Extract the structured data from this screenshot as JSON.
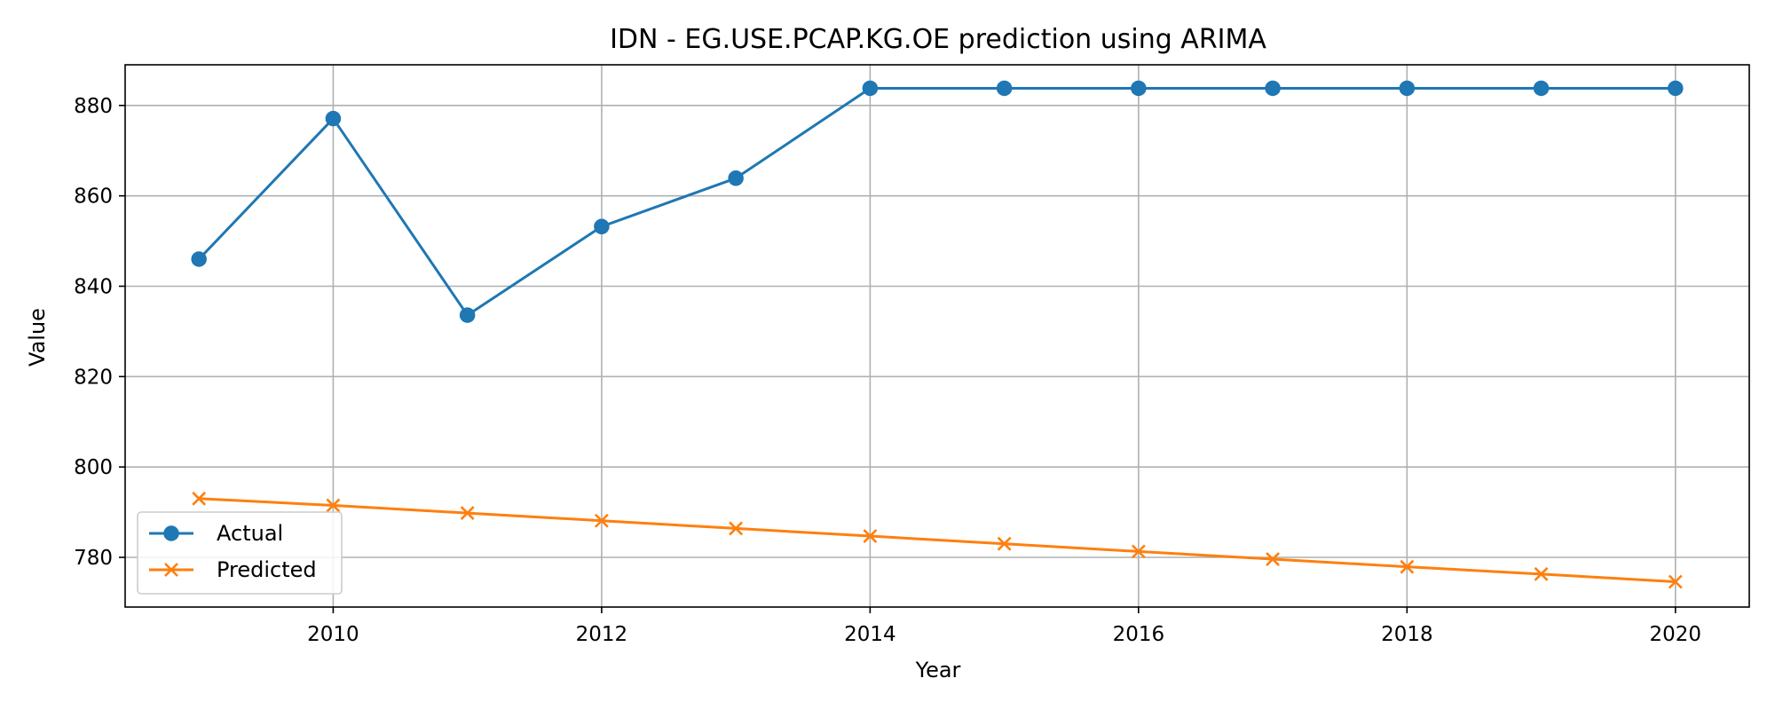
{
  "chart_data": {
    "type": "line",
    "title": "IDN - EG.USE.PCAP.KG.OE prediction using ARIMA",
    "xlabel": "Year",
    "ylabel": "Value",
    "x": [
      2009,
      2010,
      2011,
      2012,
      2013,
      2014,
      2015,
      2016,
      2017,
      2018,
      2019,
      2020
    ],
    "xlim": [
      2008.45,
      2020.55
    ],
    "ylim": [
      769,
      889
    ],
    "x_ticks": [
      2010,
      2012,
      2014,
      2016,
      2018,
      2020
    ],
    "y_ticks": [
      780,
      800,
      820,
      840,
      860,
      880
    ],
    "x_tick_labels": [
      "2010",
      "2012",
      "2014",
      "2016",
      "2018",
      "2020"
    ],
    "y_tick_labels": [
      "780",
      "800",
      "820",
      "840",
      "860",
      "880"
    ],
    "grid": true,
    "legend_position": "lower-left",
    "series": [
      {
        "name": "Actual",
        "marker": "circle",
        "color": "#1f77b4",
        "values": [
          846.0,
          877.1,
          833.6,
          853.2,
          863.9,
          883.8,
          883.8,
          883.8,
          883.8,
          883.8,
          883.8,
          883.8
        ]
      },
      {
        "name": "Predicted",
        "marker": "x",
        "color": "#ff7f0e",
        "values": [
          793.0,
          791.5,
          789.8,
          788.1,
          786.4,
          784.7,
          783.0,
          781.3,
          779.6,
          777.9,
          776.3,
          774.6
        ]
      }
    ]
  }
}
